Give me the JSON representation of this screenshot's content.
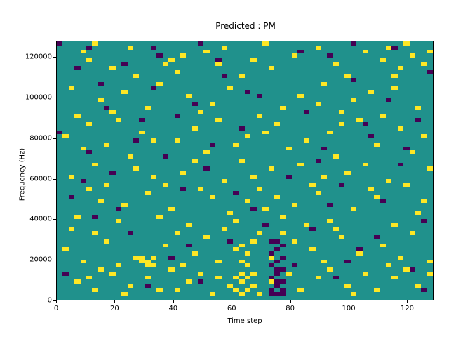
{
  "figure": {
    "background_color": "#ffffff"
  },
  "chart_data": {
    "type": "heatmap",
    "title": "Predicted : PM",
    "xlabel": "Time step",
    "ylabel": "Frequency (Hz)",
    "xlim": [
      0,
      129
    ],
    "ylim": [
      0,
      128000
    ],
    "xticks": [
      0,
      20,
      40,
      60,
      80,
      100,
      120
    ],
    "yticks": [
      0,
      20000,
      40000,
      60000,
      80000,
      100000,
      120000
    ],
    "grid": {
      "cols": 64,
      "rows": 64
    },
    "legend": "none",
    "colors": {
      "background_class": "#20918c",
      "yellow_class": "#fde725",
      "purple_class": "#440154"
    },
    "yellow_cells": [
      [
        4,
        61
      ],
      [
        5,
        59
      ],
      [
        9,
        57
      ],
      [
        12,
        62
      ],
      [
        18,
        58
      ],
      [
        19,
        59
      ],
      [
        20,
        56
      ],
      [
        21,
        60
      ],
      [
        25,
        61
      ],
      [
        27,
        58
      ],
      [
        28,
        62
      ],
      [
        33,
        59
      ],
      [
        36,
        57
      ],
      [
        40,
        60
      ],
      [
        44,
        62
      ],
      [
        47,
        58
      ],
      [
        52,
        61
      ],
      [
        55,
        59
      ],
      [
        56,
        62
      ],
      [
        58,
        57
      ],
      [
        60,
        60
      ],
      [
        62,
        58
      ],
      [
        63,
        61
      ],
      [
        13,
        55
      ],
      [
        31,
        55
      ],
      [
        49,
        55
      ],
      [
        57,
        55
      ],
      [
        6,
        63
      ],
      [
        35,
        63
      ],
      [
        59,
        63
      ],
      [
        2,
        52
      ],
      [
        7,
        49
      ],
      [
        11,
        51
      ],
      [
        15,
        47
      ],
      [
        17,
        53
      ],
      [
        22,
        50
      ],
      [
        24,
        46
      ],
      [
        26,
        48
      ],
      [
        29,
        52
      ],
      [
        34,
        45
      ],
      [
        38,
        47
      ],
      [
        41,
        50
      ],
      [
        45,
        53
      ],
      [
        48,
        46
      ],
      [
        50,
        49
      ],
      [
        53,
        51
      ],
      [
        61,
        47
      ],
      [
        3,
        45
      ],
      [
        9,
        46
      ],
      [
        55,
        45
      ],
      [
        57,
        52
      ],
      [
        44,
        48
      ],
      [
        1,
        40
      ],
      [
        5,
        43
      ],
      [
        8,
        38
      ],
      [
        14,
        41
      ],
      [
        16,
        39
      ],
      [
        23,
        42
      ],
      [
        27,
        44
      ],
      [
        30,
        38
      ],
      [
        32,
        40
      ],
      [
        37,
        43
      ],
      [
        42,
        39
      ],
      [
        46,
        41
      ],
      [
        51,
        44
      ],
      [
        54,
        38
      ],
      [
        58,
        42
      ],
      [
        62,
        40
      ],
      [
        10,
        44
      ],
      [
        20,
        39
      ],
      [
        35,
        41
      ],
      [
        48,
        43
      ],
      [
        2,
        30
      ],
      [
        6,
        33
      ],
      [
        12,
        35
      ],
      [
        18,
        28
      ],
      [
        21,
        31
      ],
      [
        25,
        36
      ],
      [
        28,
        29
      ],
      [
        31,
        34
      ],
      [
        33,
        30
      ],
      [
        36,
        32
      ],
      [
        39,
        37
      ],
      [
        43,
        28
      ],
      [
        47,
        35
      ],
      [
        49,
        31
      ],
      [
        52,
        33
      ],
      [
        56,
        29
      ],
      [
        60,
        36
      ],
      [
        63,
        32
      ],
      [
        4,
        37
      ],
      [
        16,
        30
      ],
      [
        23,
        34
      ],
      [
        41,
        33
      ],
      [
        45,
        30
      ],
      [
        59,
        28
      ],
      [
        8,
        28
      ],
      [
        13,
        32
      ],
      [
        3,
        20
      ],
      [
        7,
        24
      ],
      [
        10,
        19
      ],
      [
        15,
        26
      ],
      [
        19,
        22
      ],
      [
        22,
        18
      ],
      [
        26,
        25
      ],
      [
        29,
        21
      ],
      [
        30,
        19
      ],
      [
        32,
        24
      ],
      [
        34,
        27
      ],
      [
        38,
        20
      ],
      [
        40,
        23
      ],
      [
        44,
        26
      ],
      [
        46,
        19
      ],
      [
        50,
        22
      ],
      [
        54,
        25
      ],
      [
        57,
        18
      ],
      [
        61,
        21
      ],
      [
        5,
        27
      ],
      [
        11,
        23
      ],
      [
        17,
        20
      ],
      [
        24,
        27
      ],
      [
        37,
        25
      ],
      [
        42,
        18
      ],
      [
        53,
        27
      ],
      [
        62,
        24
      ],
      [
        35,
        22
      ],
      [
        1,
        12
      ],
      [
        4,
        9
      ],
      [
        8,
        14
      ],
      [
        13,
        10
      ],
      [
        14,
        9
      ],
      [
        14,
        10
      ],
      [
        15,
        8
      ],
      [
        15,
        9
      ],
      [
        16,
        10
      ],
      [
        16,
        8
      ],
      [
        18,
        13
      ],
      [
        20,
        16
      ],
      [
        23,
        11
      ],
      [
        25,
        15
      ],
      [
        27,
        9
      ],
      [
        30,
        12
      ],
      [
        31,
        9
      ],
      [
        31,
        13
      ],
      [
        32,
        8
      ],
      [
        32,
        11
      ],
      [
        33,
        14
      ],
      [
        36,
        10
      ],
      [
        38,
        16
      ],
      [
        43,
        12
      ],
      [
        45,
        9
      ],
      [
        48,
        15
      ],
      [
        51,
        11
      ],
      [
        55,
        13
      ],
      [
        58,
        10
      ],
      [
        60,
        16
      ],
      [
        63,
        9
      ],
      [
        6,
        16
      ],
      [
        10,
        8
      ],
      [
        21,
        8
      ],
      [
        28,
        17
      ],
      [
        40,
        14
      ],
      [
        47,
        17
      ],
      [
        56,
        8
      ],
      [
        2,
        17
      ],
      [
        34,
        16
      ],
      [
        3,
        4
      ],
      [
        6,
        2
      ],
      [
        9,
        6
      ],
      [
        12,
        3
      ],
      [
        15,
        5
      ],
      [
        17,
        2
      ],
      [
        19,
        7
      ],
      [
        22,
        4
      ],
      [
        24,
        6
      ],
      [
        26,
        1
      ],
      [
        29,
        3
      ],
      [
        30,
        2
      ],
      [
        30,
        5
      ],
      [
        31,
        1
      ],
      [
        31,
        4
      ],
      [
        31,
        6
      ],
      [
        32,
        2
      ],
      [
        32,
        5
      ],
      [
        33,
        3
      ],
      [
        33,
        6
      ],
      [
        34,
        1
      ],
      [
        36,
        4
      ],
      [
        39,
        6
      ],
      [
        41,
        2
      ],
      [
        44,
        5
      ],
      [
        46,
        7
      ],
      [
        49,
        3
      ],
      [
        52,
        6
      ],
      [
        54,
        2
      ],
      [
        57,
        5
      ],
      [
        59,
        7
      ],
      [
        61,
        3
      ],
      [
        63,
        6
      ],
      [
        7,
        7
      ],
      [
        11,
        1
      ],
      [
        37,
        7
      ],
      [
        50,
        1
      ],
      [
        5,
        5
      ],
      [
        20,
        2
      ],
      [
        27,
        5
      ]
    ],
    "purple_cells": [
      [
        36,
        2
      ],
      [
        36,
        5
      ],
      [
        36,
        8
      ],
      [
        37,
        1
      ],
      [
        37,
        3
      ],
      [
        37,
        6
      ],
      [
        37,
        9
      ],
      [
        37,
        12
      ],
      [
        38,
        2
      ],
      [
        38,
        4
      ],
      [
        38,
        7
      ],
      [
        38,
        10
      ],
      [
        38,
        13
      ],
      [
        36,
        11
      ],
      [
        37,
        14
      ],
      [
        36,
        14
      ],
      [
        37,
        4
      ],
      [
        38,
        1
      ],
      [
        36,
        1
      ],
      [
        37,
        7
      ],
      [
        0,
        41
      ],
      [
        2,
        25
      ],
      [
        3,
        57
      ],
      [
        5,
        36
      ],
      [
        6,
        20
      ],
      [
        8,
        47
      ],
      [
        9,
        31
      ],
      [
        11,
        58
      ],
      [
        12,
        16
      ],
      [
        14,
        44
      ],
      [
        16,
        52
      ],
      [
        18,
        35
      ],
      [
        19,
        10
      ],
      [
        21,
        27
      ],
      [
        23,
        48
      ],
      [
        24,
        4
      ],
      [
        26,
        38
      ],
      [
        28,
        55
      ],
      [
        29,
        14
      ],
      [
        31,
        42
      ],
      [
        33,
        22
      ],
      [
        34,
        50
      ],
      [
        39,
        30
      ],
      [
        40,
        8
      ],
      [
        42,
        46
      ],
      [
        43,
        17
      ],
      [
        45,
        37
      ],
      [
        47,
        5
      ],
      [
        48,
        28
      ],
      [
        50,
        54
      ],
      [
        51,
        12
      ],
      [
        53,
        40
      ],
      [
        55,
        24
      ],
      [
        56,
        49
      ],
      [
        58,
        33
      ],
      [
        60,
        7
      ],
      [
        61,
        44
      ],
      [
        62,
        19
      ],
      [
        63,
        56
      ],
      [
        1,
        6
      ],
      [
        4,
        29
      ],
      [
        7,
        53
      ],
      [
        10,
        22
      ],
      [
        13,
        39
      ],
      [
        15,
        3
      ],
      [
        17,
        60
      ],
      [
        20,
        45
      ],
      [
        22,
        13
      ],
      [
        25,
        32
      ],
      [
        27,
        59
      ],
      [
        30,
        26
      ],
      [
        32,
        51
      ],
      [
        35,
        18
      ],
      [
        41,
        61
      ],
      [
        44,
        34
      ],
      [
        46,
        23
      ],
      [
        49,
        9
      ],
      [
        52,
        43
      ],
      [
        54,
        15
      ],
      [
        57,
        62
      ],
      [
        59,
        37
      ],
      [
        62,
        2
      ],
      [
        0,
        63
      ],
      [
        24,
        63
      ],
      [
        46,
        60
      ],
      [
        5,
        62
      ],
      [
        50,
        63
      ],
      [
        16,
        62
      ]
    ]
  }
}
